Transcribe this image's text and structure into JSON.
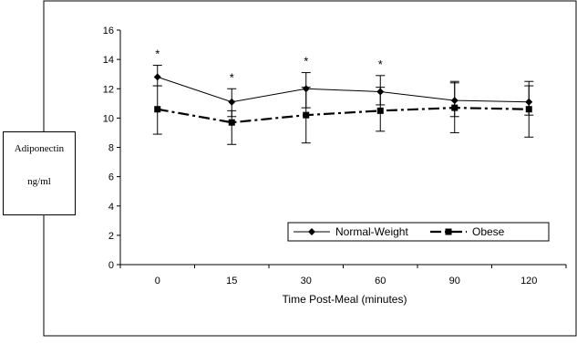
{
  "chart_data": {
    "type": "line",
    "title": "",
    "xlabel": "Time Post-Meal (minutes)",
    "ylabel": [
      "Adiponectin",
      "ng/ml"
    ],
    "categories": [
      "0",
      "15",
      "30",
      "60",
      "90",
      "120"
    ],
    "ylim": [
      0,
      16
    ],
    "yticks": [
      0,
      2,
      4,
      6,
      8,
      10,
      12,
      14,
      16
    ],
    "grid": false,
    "legend_position": "bottom-right",
    "series": [
      {
        "name": "Normal-Weight",
        "values": [
          12.8,
          11.1,
          12.0,
          11.8,
          11.2,
          11.1
        ],
        "err_upper": [
          0.8,
          0.9,
          1.1,
          1.1,
          1.3,
          1.4
        ],
        "err_lower": [
          0.6,
          1.0,
          1.3,
          0.9,
          1.1,
          0.9
        ],
        "color": "#000000",
        "marker": "diamond",
        "line": "solid"
      },
      {
        "name": "Obese",
        "values": [
          10.6,
          9.7,
          10.2,
          10.5,
          10.7,
          10.6
        ],
        "err_upper": [
          1.6,
          0.8,
          1.9,
          1.6,
          1.7,
          1.6
        ],
        "err_lower": [
          1.7,
          1.5,
          1.9,
          1.4,
          1.7,
          1.9
        ],
        "color": "#000000",
        "marker": "square",
        "line": "dashdot"
      }
    ],
    "annotations": [
      {
        "category": "0",
        "text": "*"
      },
      {
        "category": "15",
        "text": "*"
      },
      {
        "category": "30",
        "text": "*"
      },
      {
        "category": "60",
        "text": "*"
      }
    ]
  }
}
